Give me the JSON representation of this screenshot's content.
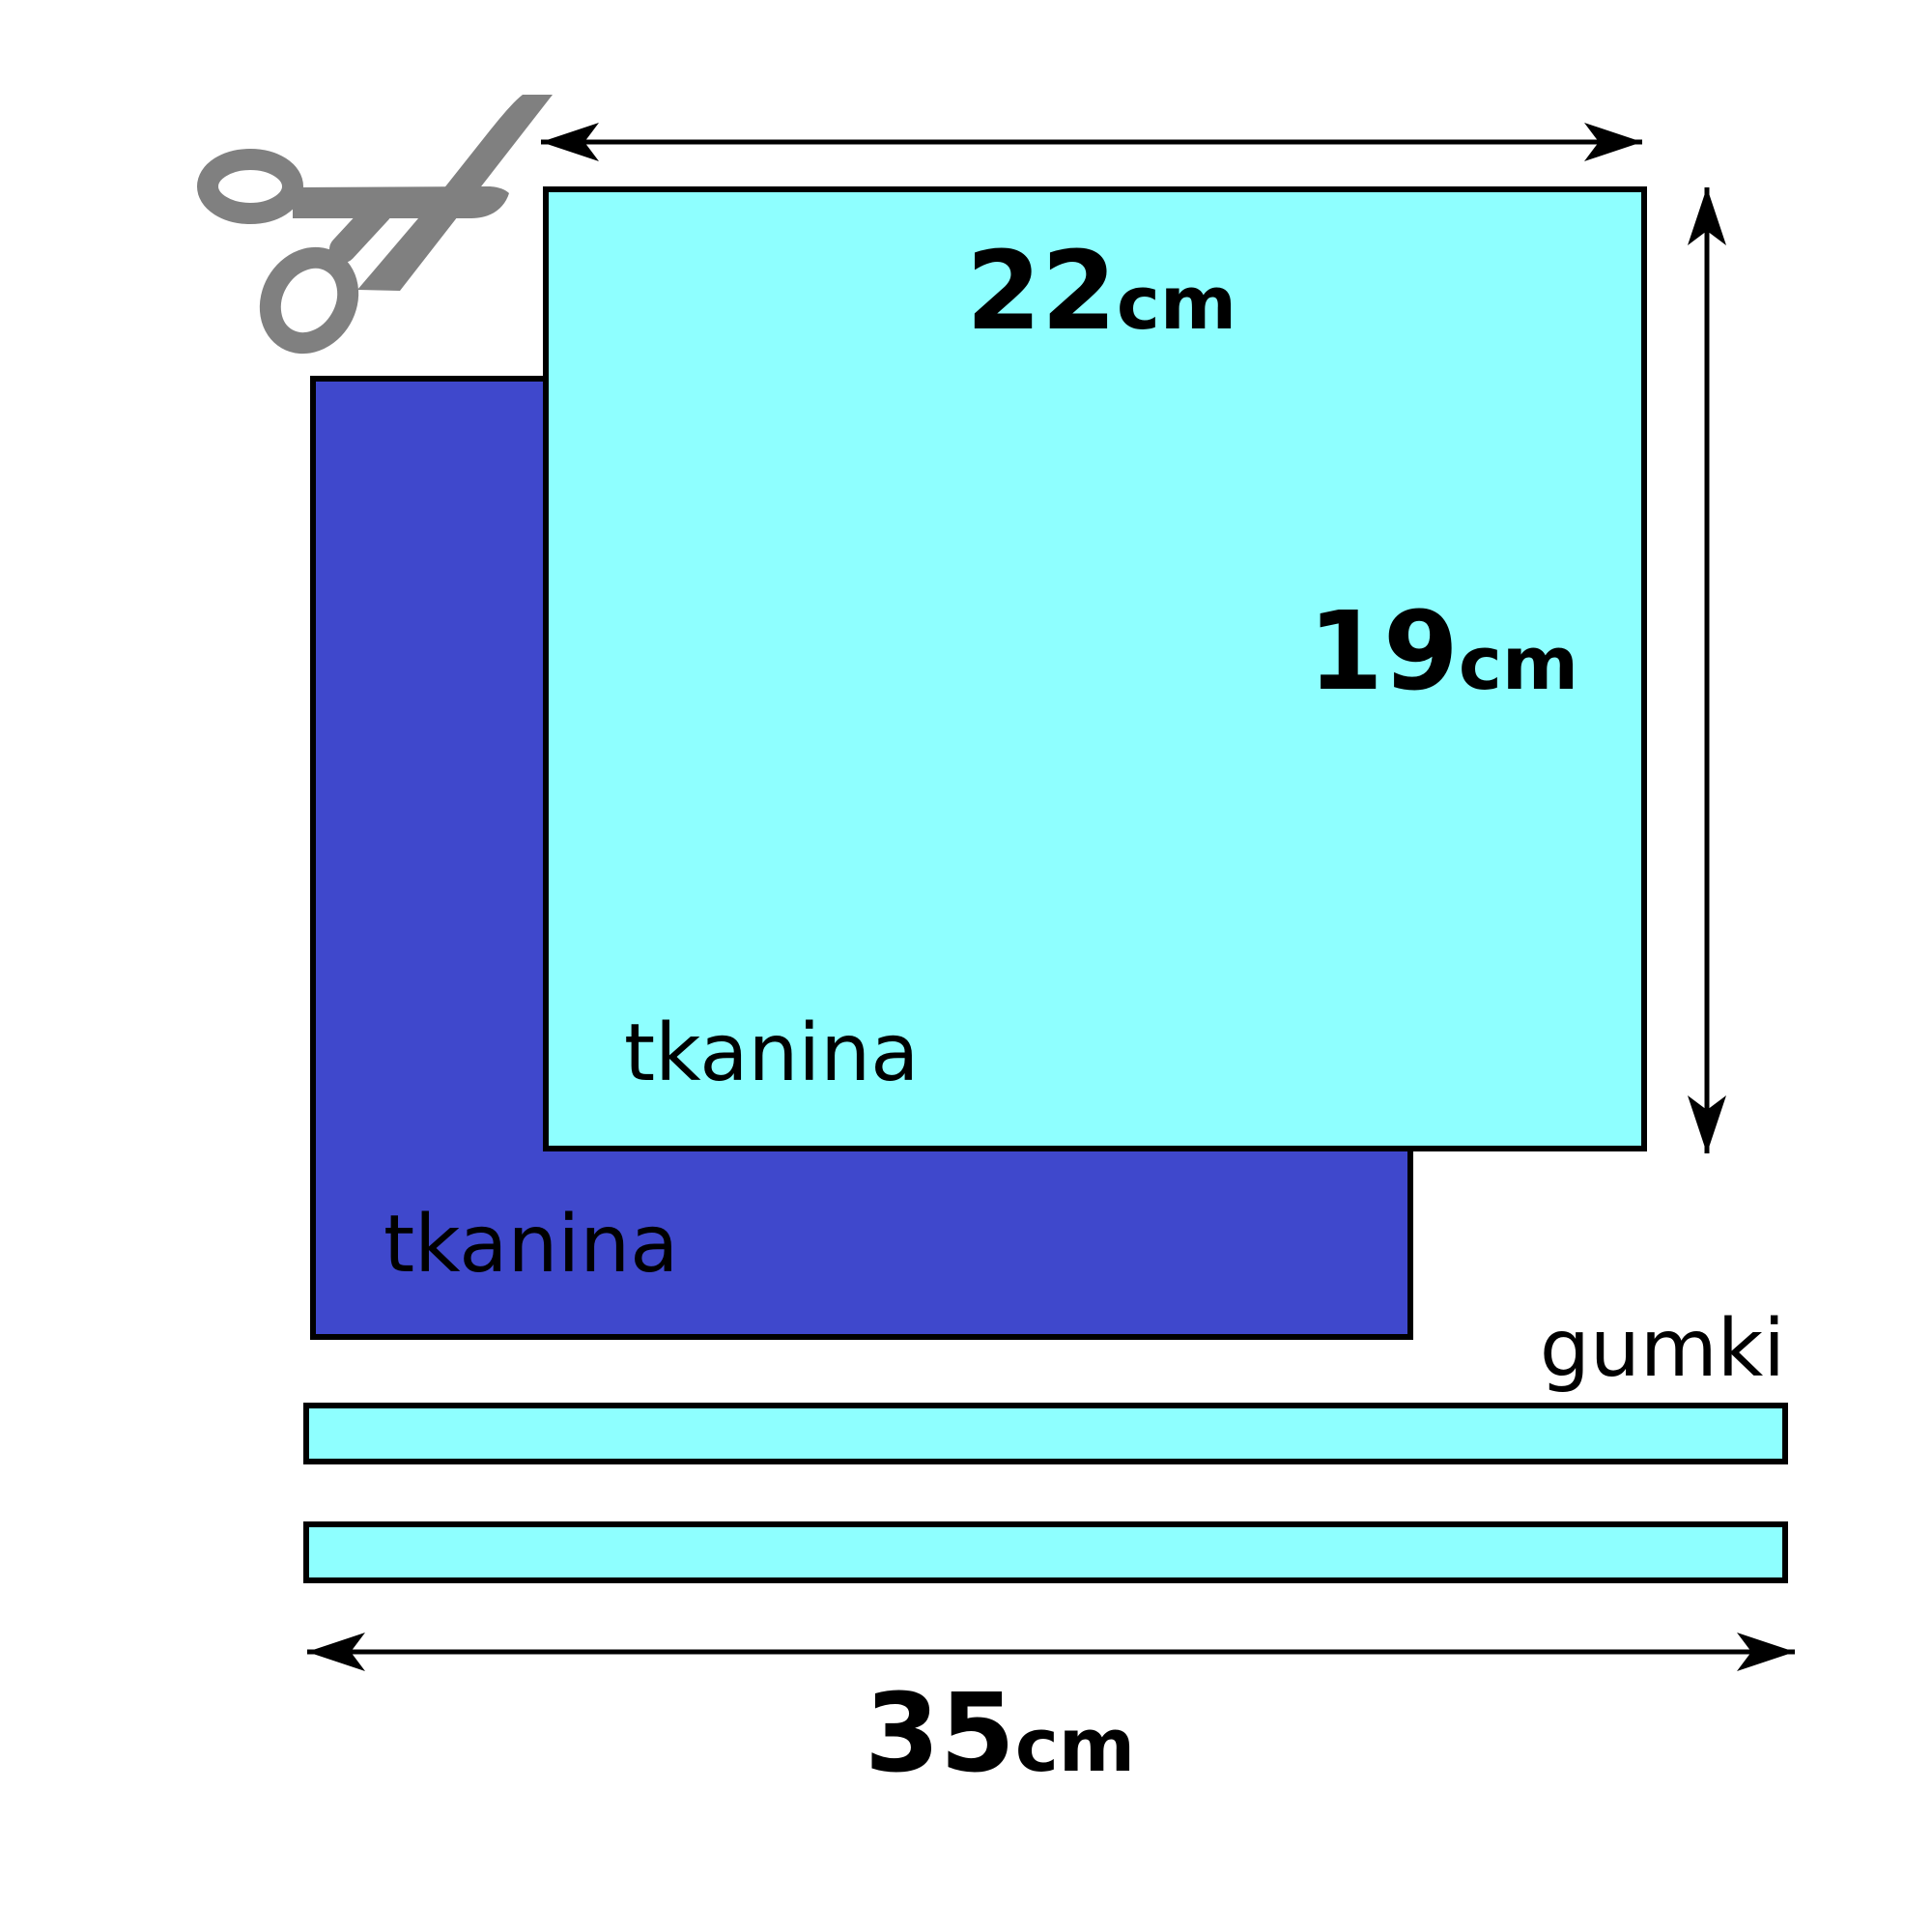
{
  "colors": {
    "fabric_front": "#8effff",
    "fabric_back": "#3f48cc",
    "elastic": "#8effff",
    "outline": "#000000",
    "scissors": "#808080"
  },
  "icons": {
    "scissors": "scissors-icon"
  },
  "dimensions": {
    "width": {
      "value": "22",
      "unit": "cm"
    },
    "height": {
      "value": "19",
      "unit": "cm"
    },
    "elastic_length": {
      "value": "35",
      "unit": "cm"
    }
  },
  "labels": {
    "fabric_front": "tkanina",
    "fabric_back": "tkanina",
    "elastic": "gumki"
  }
}
